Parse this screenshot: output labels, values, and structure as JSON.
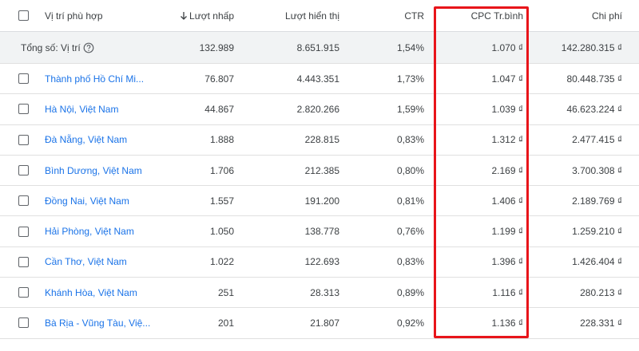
{
  "table": {
    "headers": [
      "Vị trí phù hợp",
      "Lượt nhấp",
      "Lượt hiển thị",
      "CTR",
      "CPC Tr.bình",
      "Chi phí"
    ],
    "total": [
      "Tổng số: Vị trí",
      "132.989",
      "8.651.915",
      "1,54%",
      "1.070 ₫",
      "142.280.315 ₫"
    ],
    "rows": [
      [
        "Thành phố Hồ Chí Mi...",
        "76.807",
        "4.443.351",
        "1,73%",
        "1.047 ₫",
        "80.448.735 ₫"
      ],
      [
        "Hà Nội, Việt Nam",
        "44.867",
        "2.820.266",
        "1,59%",
        "1.039 ₫",
        "46.623.224 ₫"
      ],
      [
        "Đà Nẵng, Việt Nam",
        "1.888",
        "228.815",
        "0,83%",
        "1.312 ₫",
        "2.477.415 ₫"
      ],
      [
        "Bình Dương, Việt Nam",
        "1.706",
        "212.385",
        "0,80%",
        "2.169 ₫",
        "3.700.308 ₫"
      ],
      [
        "Đồng Nai, Việt Nam",
        "1.557",
        "191.200",
        "0,81%",
        "1.406 ₫",
        "2.189.769 ₫"
      ],
      [
        "Hải Phòng, Việt Nam",
        "1.050",
        "138.778",
        "0,76%",
        "1.199 ₫",
        "1.259.210 ₫"
      ],
      [
        "Cần Thơ, Việt Nam",
        "1.022",
        "122.693",
        "0,83%",
        "1.396 ₫",
        "1.426.404 ₫"
      ],
      [
        "Khánh Hòa, Việt Nam",
        "251",
        "28.313",
        "0,89%",
        "1.116 ₫",
        "280.213 ₫"
      ],
      [
        "Bà Rịa - Vũng Tàu, Việ...",
        "201",
        "21.807",
        "0,92%",
        "1.136 ₫",
        "228.331 ₫"
      ]
    ]
  }
}
